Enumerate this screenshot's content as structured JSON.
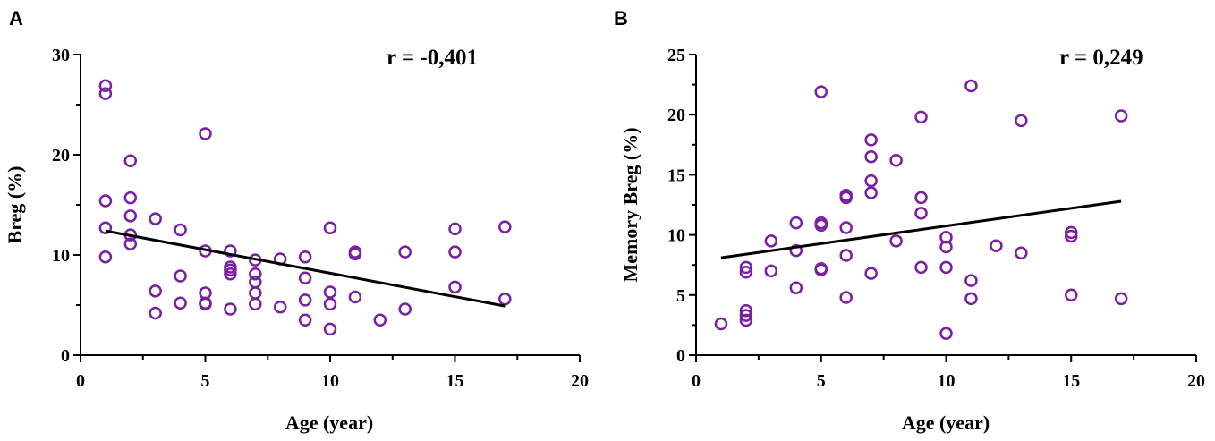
{
  "colors": {
    "marker": "#7b1fa2",
    "axis": "#000000",
    "trend": "#000000"
  },
  "chart_data": [
    {
      "type": "scatter",
      "panel": "A",
      "annotation": "r = -0,401",
      "xlabel": "Age (year)",
      "ylabel": "Breg (%)",
      "xlim": [
        0,
        20
      ],
      "ylim": [
        0,
        30
      ],
      "xticks": [
        0,
        5,
        10,
        15,
        20
      ],
      "yticks": [
        0,
        10,
        20,
        30
      ],
      "trendline": {
        "x": [
          1,
          17
        ],
        "y": [
          12.4,
          4.9
        ]
      },
      "points": [
        [
          1,
          26.9
        ],
        [
          1,
          26.1
        ],
        [
          1,
          15.4
        ],
        [
          1,
          12.7
        ],
        [
          1,
          9.8
        ],
        [
          2,
          19.4
        ],
        [
          2,
          15.7
        ],
        [
          2,
          13.9
        ],
        [
          2,
          12.0
        ],
        [
          2,
          11.1
        ],
        [
          3,
          13.6
        ],
        [
          3,
          6.4
        ],
        [
          3,
          4.2
        ],
        [
          4,
          12.5
        ],
        [
          4,
          7.9
        ],
        [
          4,
          5.2
        ],
        [
          5,
          22.1
        ],
        [
          5,
          10.4
        ],
        [
          5,
          6.2
        ],
        [
          5,
          5.2
        ],
        [
          5,
          5.1
        ],
        [
          6,
          10.4
        ],
        [
          6,
          8.8
        ],
        [
          6,
          8.5
        ],
        [
          6,
          8.1
        ],
        [
          6,
          4.6
        ],
        [
          7,
          9.5
        ],
        [
          7,
          8.1
        ],
        [
          7,
          7.3
        ],
        [
          7,
          6.2
        ],
        [
          7,
          5.1
        ],
        [
          8,
          9.6
        ],
        [
          8,
          4.8
        ],
        [
          9,
          9.8
        ],
        [
          9,
          7.7
        ],
        [
          9,
          5.5
        ],
        [
          9,
          3.5
        ],
        [
          10,
          12.7
        ],
        [
          10,
          6.3
        ],
        [
          10,
          5.1
        ],
        [
          10,
          2.6
        ],
        [
          11,
          10.3
        ],
        [
          11,
          10.1
        ],
        [
          11,
          5.8
        ],
        [
          12,
          3.5
        ],
        [
          13,
          10.3
        ],
        [
          13,
          4.6
        ],
        [
          15,
          12.6
        ],
        [
          15,
          10.3
        ],
        [
          15,
          6.8
        ],
        [
          17,
          12.8
        ],
        [
          17,
          5.6
        ]
      ]
    },
    {
      "type": "scatter",
      "panel": "B",
      "annotation": "r = 0,249",
      "xlabel": "Age (year)",
      "ylabel": "Memory Breg (%)",
      "xlim": [
        0,
        20
      ],
      "ylim": [
        0,
        25
      ],
      "xticks": [
        0,
        5,
        10,
        15,
        20
      ],
      "yticks": [
        0,
        5,
        10,
        15,
        20,
        25
      ],
      "trendline": {
        "x": [
          1,
          17
        ],
        "y": [
          8.1,
          12.8
        ]
      },
      "points": [
        [
          1,
          2.6
        ],
        [
          2,
          7.3
        ],
        [
          2,
          6.9
        ],
        [
          2,
          3.7
        ],
        [
          2,
          3.3
        ],
        [
          2,
          2.9
        ],
        [
          3,
          9.5
        ],
        [
          3,
          7.0
        ],
        [
          4,
          11.0
        ],
        [
          4,
          8.7
        ],
        [
          4,
          5.6
        ],
        [
          5,
          21.9
        ],
        [
          5,
          11.0
        ],
        [
          5,
          10.8
        ],
        [
          5,
          7.2
        ],
        [
          5,
          7.1
        ],
        [
          6,
          13.3
        ],
        [
          6,
          13.1
        ],
        [
          6,
          10.6
        ],
        [
          6,
          8.3
        ],
        [
          6,
          4.8
        ],
        [
          7,
          17.9
        ],
        [
          7,
          16.5
        ],
        [
          7,
          14.5
        ],
        [
          7,
          13.5
        ],
        [
          7,
          6.8
        ],
        [
          8,
          16.2
        ],
        [
          8,
          9.5
        ],
        [
          9,
          19.8
        ],
        [
          9,
          13.1
        ],
        [
          9,
          11.8
        ],
        [
          9,
          7.3
        ],
        [
          10,
          9.8
        ],
        [
          10,
          9.0
        ],
        [
          10,
          7.3
        ],
        [
          10,
          1.8
        ],
        [
          11,
          22.4
        ],
        [
          11,
          6.2
        ],
        [
          11,
          4.7
        ],
        [
          12,
          9.1
        ],
        [
          13,
          19.5
        ],
        [
          13,
          8.5
        ],
        [
          15,
          10.2
        ],
        [
          15,
          9.9
        ],
        [
          15,
          5.0
        ],
        [
          17,
          19.9
        ],
        [
          17,
          4.7
        ]
      ]
    }
  ]
}
